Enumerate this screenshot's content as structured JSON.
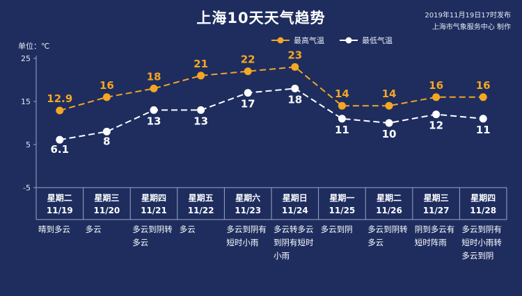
{
  "title": "上海10天天气趋势",
  "release": "2019年11月19日17时发布",
  "producer": "上海市气象服务中心 制作",
  "unit_label": "单位：℃",
  "colors": {
    "high": "#f5a623",
    "low": "#ffffff",
    "background": "#1e2d5e",
    "axis": "#9aa6c8"
  },
  "chart_data": {
    "type": "line",
    "categories": [
      "11/19",
      "11/20",
      "11/21",
      "11/22",
      "11/23",
      "11/24",
      "11/25",
      "11/26",
      "11/27",
      "11/28"
    ],
    "weekdays": [
      "星期二",
      "星期三",
      "星期四",
      "星期五",
      "星期六",
      "星期日",
      "星期一",
      "星期二",
      "星期三",
      "星期四"
    ],
    "weather": [
      "晴到多云",
      "多云",
      "多云到阴转多云",
      "多云",
      "多云到阴有短时小雨",
      "多云转多云到阴有短时小雨",
      "多云到阴",
      "多云到阴转多云",
      "阴到多云有短时阵雨",
      "多云到阴有短时小雨转多云到阴"
    ],
    "series": [
      {
        "name": "最高气温",
        "values": [
          12.9,
          16,
          18,
          21,
          22,
          23,
          14,
          14,
          16,
          16
        ],
        "labels": [
          "12.9",
          "16",
          "18",
          "21",
          "22",
          "23",
          "14",
          "14",
          "16",
          "16"
        ]
      },
      {
        "name": "最低气温",
        "values": [
          6.1,
          8,
          13,
          13,
          17,
          18,
          11,
          10,
          12,
          11
        ],
        "labels": [
          "6.1",
          "8",
          "13",
          "13",
          "17",
          "18",
          "11",
          "10",
          "12",
          "11"
        ]
      }
    ],
    "yticks": [
      "25",
      "15",
      "5",
      "-5"
    ],
    "ylim": [
      -5,
      25
    ],
    "grid": false,
    "legend_position": "top-right"
  }
}
